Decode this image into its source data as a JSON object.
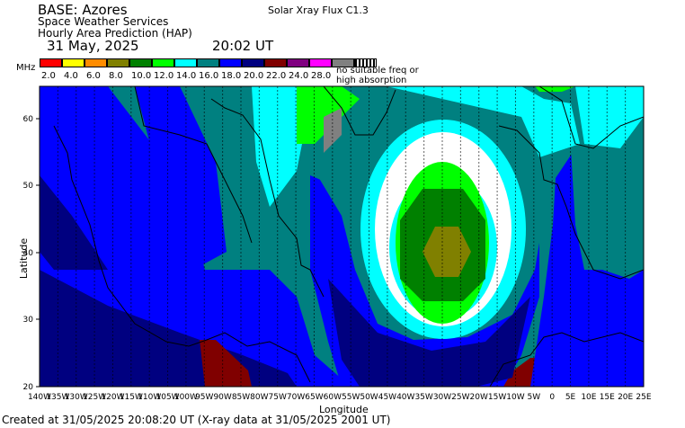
{
  "header": {
    "base": "BASE: Azores",
    "org": "Space Weather Services",
    "product": "Hourly Area Prediction (HAP)",
    "flux": "Solar Xray Flux C1.3",
    "date": "31 May, 2025",
    "time": "20:02 UT"
  },
  "legend": {
    "unit": "MHz",
    "items": [
      {
        "label": "2.0",
        "color": "#ff0000"
      },
      {
        "label": "4.0",
        "color": "#ffff00"
      },
      {
        "label": "6.0",
        "color": "#ff8c00"
      },
      {
        "label": "8.0",
        "color": "#808000"
      },
      {
        "label": "10.0",
        "color": "#008000"
      },
      {
        "label": "12.0",
        "color": "#00ff00"
      },
      {
        "label": "14.0",
        "color": "#00ffff"
      },
      {
        "label": "16.0",
        "color": "#008080"
      },
      {
        "label": "18.0",
        "color": "#0000ff"
      },
      {
        "label": "20.0",
        "color": "#000080"
      },
      {
        "label": "22.0",
        "color": "#800000"
      },
      {
        "label": "24.0",
        "color": "#800080"
      },
      {
        "label": "28.0",
        "color": "#ff00ff"
      },
      {
        "label": "",
        "color": "#808080"
      }
    ],
    "no_signal_note": "no suitable freq or high absorption"
  },
  "axes": {
    "ylabel": "Latitude",
    "xlabel": "Longitude",
    "yticks": [
      "60",
      "50",
      "40",
      "30",
      "20"
    ],
    "xticks": [
      "140W",
      "135W",
      "130W",
      "125W",
      "120W",
      "115W",
      "110W",
      "105W",
      "100W",
      "95W",
      "90W",
      "85W",
      "80W",
      "75W",
      "70W",
      "65W",
      "60W",
      "55W",
      "50W",
      "45W",
      "40W",
      "35W",
      "30W",
      "25W",
      "20W",
      "15W",
      "10W",
      "5W",
      "0",
      "5E",
      "10E",
      "15E",
      "20E",
      "25E"
    ]
  },
  "footer": {
    "created": "Created at 31/05/2025 20:08:20 UT (X-ray data at 31/05/2025 2001 UT)"
  }
}
